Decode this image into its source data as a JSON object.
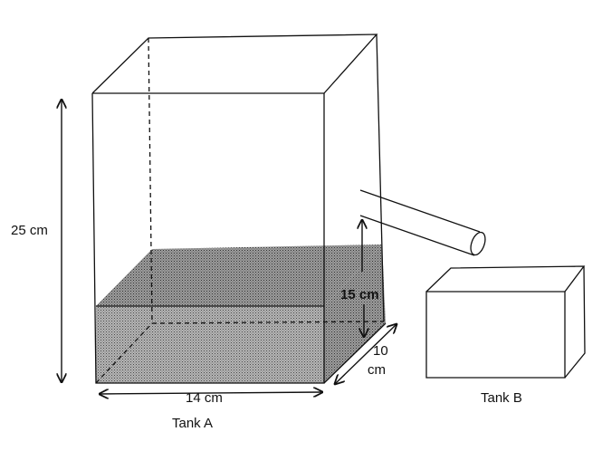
{
  "labels": {
    "height": "25 cm",
    "width": "14 cm",
    "depth_line1": "10",
    "depth_line2": "cm",
    "water_height": "15 cm",
    "tank_a": "Tank A",
    "tank_b": "Tank B"
  },
  "colors": {
    "water_fill": "#9a9a9a",
    "water_top": "#8d8d8d",
    "water_side": "#a4a4a4"
  }
}
